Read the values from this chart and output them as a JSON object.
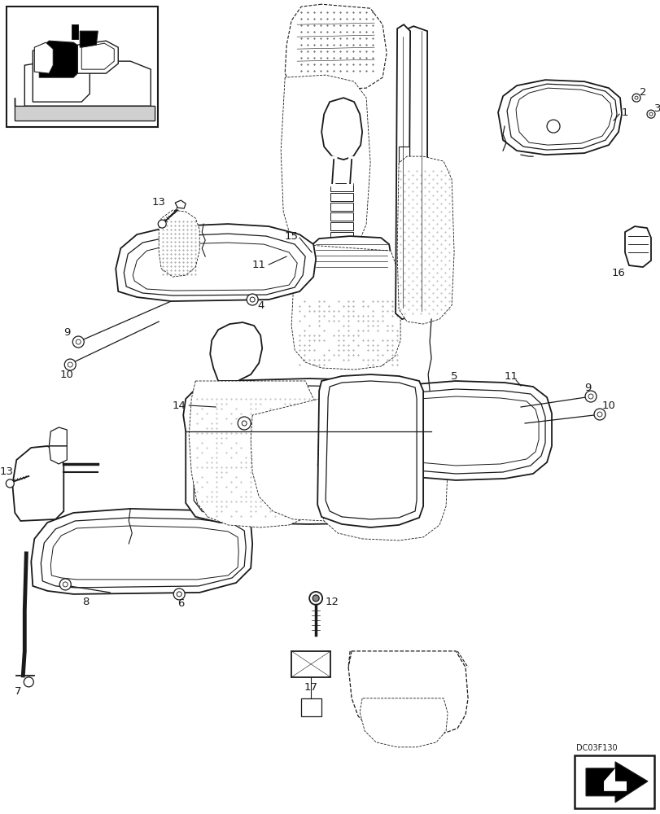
{
  "bg_color": "#ffffff",
  "line_color": "#1a1a1a",
  "figure_code": "DC03F130",
  "lw_heavy": 1.3,
  "lw_med": 0.9,
  "lw_light": 0.6,
  "fs_label": 9.5
}
